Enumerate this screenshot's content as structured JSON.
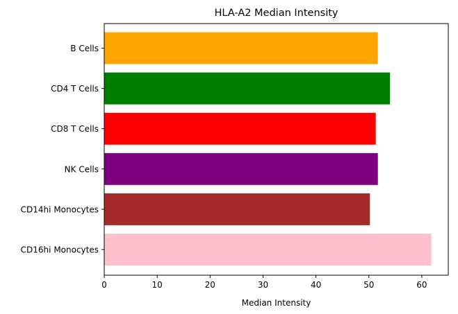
{
  "chart_data": {
    "type": "bar",
    "orientation": "horizontal",
    "title": "HLA-A2 Median Intensity",
    "xlabel": "Median Intensity",
    "ylabel": "",
    "xlim": [
      0,
      65
    ],
    "xticks": [
      0,
      10,
      20,
      30,
      40,
      50,
      60
    ],
    "grid": false,
    "categories": [
      "B Cells",
      "CD4 T Cells",
      "CD8 T Cells",
      "NK Cells",
      "CD14hi Monocytes",
      "CD16hi Monocytes"
    ],
    "values": [
      51.7,
      54.0,
      51.3,
      51.7,
      50.2,
      61.8
    ],
    "colors": [
      "#ffa500",
      "#008000",
      "#ff0000",
      "#800080",
      "#a52a2a",
      "#ffc0cb"
    ]
  }
}
